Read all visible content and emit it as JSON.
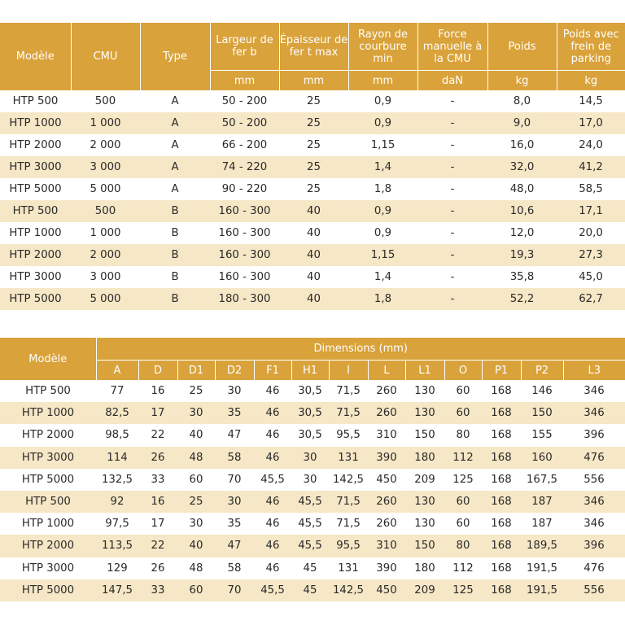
{
  "table1": {
    "headers": [
      "Modèle",
      "CMU",
      "Type",
      "Largeur de fer b",
      "Épaisseur de fer t max",
      "Rayon de courbure min",
      "Force manuelle à la CMU",
      "Poids",
      "Poids avec frein de parking"
    ],
    "units": [
      "mm",
      "mm",
      "mm",
      "daN",
      "kg",
      "kg"
    ],
    "rows": [
      [
        "HTP 500",
        "500",
        "A",
        "50 - 200",
        "25",
        "0,9",
        "-",
        "8,0",
        "14,5"
      ],
      [
        "HTP 1000",
        "1 000",
        "A",
        "50 - 200",
        "25",
        "0,9",
        "-",
        "9,0",
        "17,0"
      ],
      [
        "HTP 2000",
        "2 000",
        "A",
        "66 - 200",
        "25",
        "1,15",
        "-",
        "16,0",
        "24,0"
      ],
      [
        "HTP 3000",
        "3 000",
        "A",
        "74 - 220",
        "25",
        "1,4",
        "-",
        "32,0",
        "41,2"
      ],
      [
        "HTP 5000",
        "5 000",
        "A",
        "90 - 220",
        "25",
        "1,8",
        "-",
        "48,0",
        "58,5"
      ],
      [
        "HTP 500",
        "500",
        "B",
        "160 - 300",
        "40",
        "0,9",
        "-",
        "10,6",
        "17,1"
      ],
      [
        "HTP 1000",
        "1 000",
        "B",
        "160 - 300",
        "40",
        "0,9",
        "-",
        "12,0",
        "20,0"
      ],
      [
        "HTP 2000",
        "2 000",
        "B",
        "160 - 300",
        "40",
        "1,15",
        "-",
        "19,3",
        "27,3"
      ],
      [
        "HTP 3000",
        "3 000",
        "B",
        "160 - 300",
        "40",
        "1,4",
        "-",
        "35,8",
        "45,0"
      ],
      [
        "HTP 5000",
        "5 000",
        "B",
        "180 - 300",
        "40",
        "1,8",
        "-",
        "52,2",
        "62,7"
      ]
    ]
  },
  "table2": {
    "model_header": "Modèle",
    "group_header": "Dimensions (mm)",
    "columns": [
      "A",
      "D",
      "D1",
      "D2",
      "F1",
      "H1",
      "I",
      "L",
      "L1",
      "O",
      "P1",
      "P2",
      "L3"
    ],
    "rows": [
      [
        "HTP 500",
        "77",
        "16",
        "25",
        "30",
        "46",
        "30,5",
        "71,5",
        "260",
        "130",
        "60",
        "168",
        "146",
        "346"
      ],
      [
        "HTP 1000",
        "82,5",
        "17",
        "30",
        "35",
        "46",
        "30,5",
        "71,5",
        "260",
        "130",
        "60",
        "168",
        "150",
        "346"
      ],
      [
        "HTP 2000",
        "98,5",
        "22",
        "40",
        "47",
        "46",
        "30,5",
        "95,5",
        "310",
        "150",
        "80",
        "168",
        "155",
        "396"
      ],
      [
        "HTP 3000",
        "114",
        "26",
        "48",
        "58",
        "46",
        "30",
        "131",
        "390",
        "180",
        "112",
        "168",
        "160",
        "476"
      ],
      [
        "HTP 5000",
        "132,5",
        "33",
        "60",
        "70",
        "45,5",
        "30",
        "142,5",
        "450",
        "209",
        "125",
        "168",
        "167,5",
        "556"
      ],
      [
        "HTP 500",
        "92",
        "16",
        "25",
        "30",
        "46",
        "45,5",
        "71,5",
        "260",
        "130",
        "60",
        "168",
        "187",
        "346"
      ],
      [
        "HTP 1000",
        "97,5",
        "17",
        "30",
        "35",
        "46",
        "45,5",
        "71,5",
        "260",
        "130",
        "60",
        "168",
        "187",
        "346"
      ],
      [
        "HTP 2000",
        "113,5",
        "22",
        "40",
        "47",
        "46",
        "45,5",
        "95,5",
        "310",
        "150",
        "80",
        "168",
        "189,5",
        "396"
      ],
      [
        "HTP 3000",
        "129",
        "26",
        "48",
        "58",
        "46",
        "45",
        "131",
        "390",
        "180",
        "112",
        "168",
        "191,5",
        "476"
      ],
      [
        "HTP 5000",
        "147,5",
        "33",
        "60",
        "70",
        "45,5",
        "45",
        "142,5",
        "450",
        "209",
        "125",
        "168",
        "191,5",
        "556"
      ]
    ]
  }
}
